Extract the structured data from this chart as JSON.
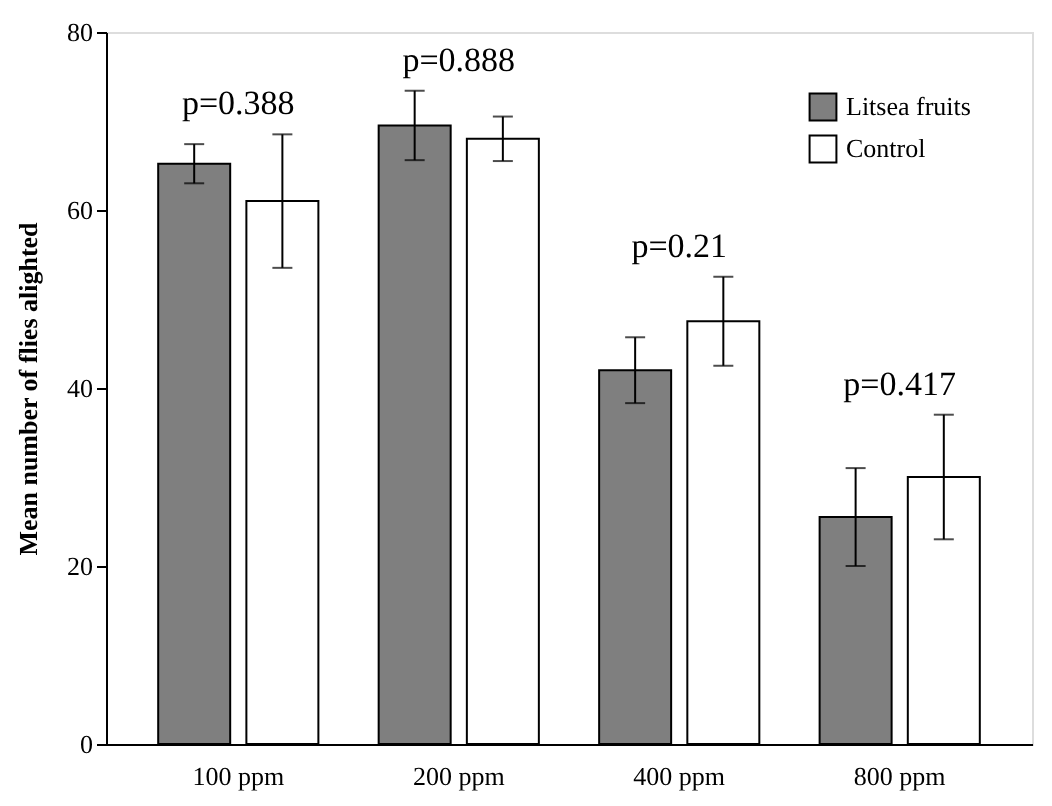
{
  "chart_data": {
    "type": "bar",
    "ylabel": "Mean number of flies alighted",
    "categories": [
      "100 ppm",
      "200 ppm",
      "400 ppm",
      "800 ppm"
    ],
    "series": [
      {
        "name": "Litsea fruits",
        "color": "#7f7f7f",
        "values": [
          65.2,
          69.5,
          42,
          25.5
        ],
        "errors": [
          2.2,
          3.9,
          3.7,
          5.5
        ]
      },
      {
        "name": "Control",
        "color": "#ffffff",
        "values": [
          61,
          68,
          47.5,
          30
        ],
        "errors": [
          7.5,
          2.5,
          5,
          7
        ]
      }
    ],
    "ylim": [
      0,
      80
    ],
    "yticks": [
      0,
      20,
      40,
      60,
      80
    ],
    "grid": false,
    "legend": "top right",
    "annotations": [
      "p=0.388",
      "p=0.888",
      "p=0.21",
      "p=0.417"
    ]
  }
}
